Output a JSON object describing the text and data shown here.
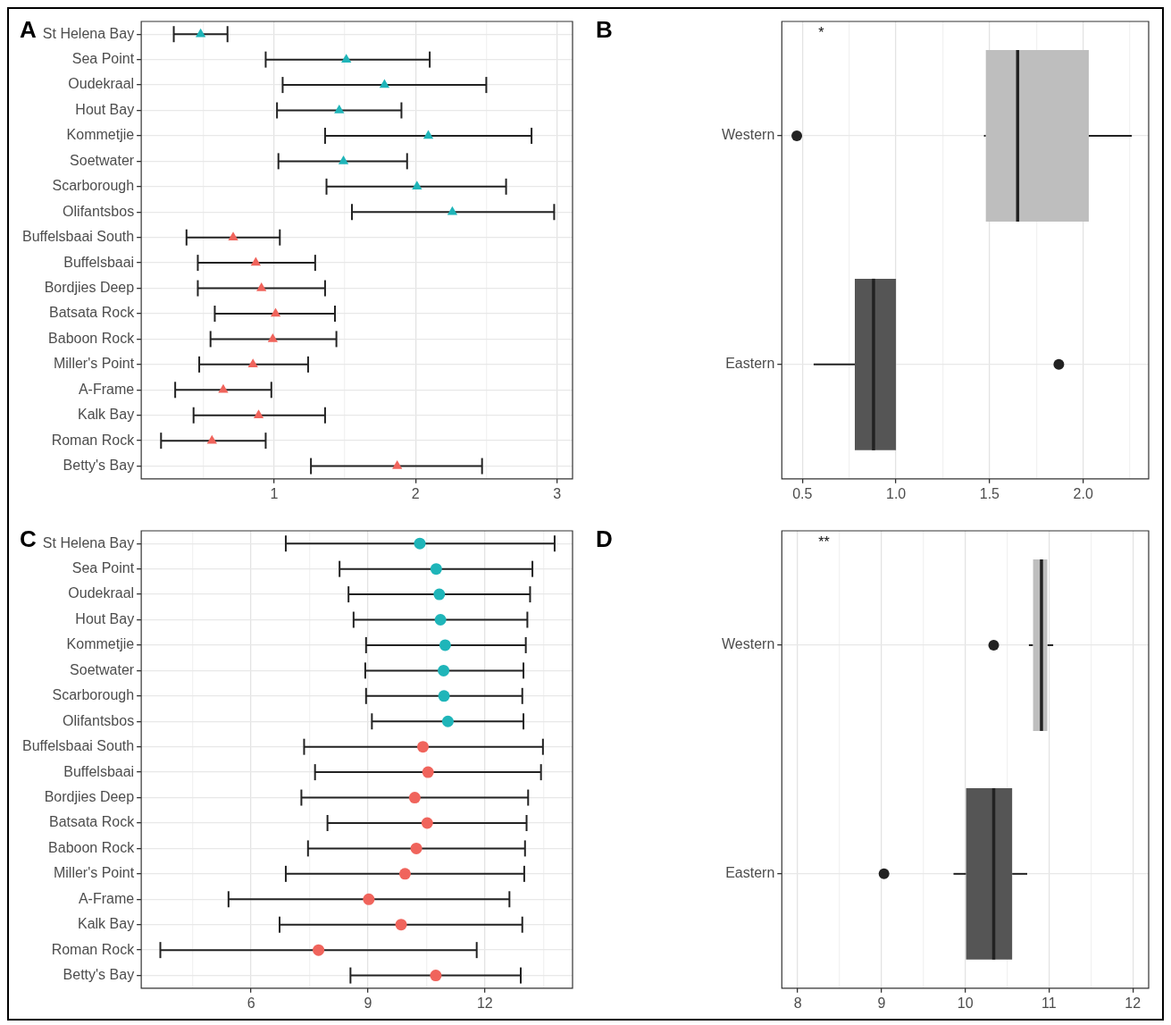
{
  "chart_data": [
    {
      "type": "scatter",
      "title": "A",
      "orientation": "horizontal",
      "marker": "triangle",
      "grid": true,
      "categories": [
        "St Helena Bay",
        "Sea Point",
        "Oudekraal",
        "Hout Bay",
        "Kommetjie",
        "Soetwater",
        "Scarborough",
        "Olifantsbos",
        "Buffelsbaai South",
        "Buffelsbaai",
        "Bordjies Deep",
        "Batsata Rock",
        "Baboon Rock",
        "Miller's Point",
        "A-Frame",
        "Kalk Bay",
        "Roman Rock",
        "Betty's Bay"
      ],
      "series": [
        {
          "color": "#1fb5b9",
          "values": [
            0.48,
            1.51,
            1.78,
            1.46,
            2.09,
            1.49,
            2.01,
            2.26,
            null,
            null,
            null,
            null,
            null,
            null,
            null,
            null,
            null,
            null
          ],
          "errors": [
            [
              0.29,
              0.67
            ],
            [
              0.94,
              2.1
            ],
            [
              1.06,
              2.5
            ],
            [
              1.02,
              1.9
            ],
            [
              1.36,
              2.82
            ],
            [
              1.03,
              1.94
            ],
            [
              1.37,
              2.64
            ],
            [
              1.55,
              2.98
            ],
            null,
            null,
            null,
            null,
            null,
            null,
            null,
            null,
            null,
            null
          ]
        },
        {
          "color": "#f0645c",
          "values": [
            null,
            null,
            null,
            null,
            null,
            null,
            null,
            null,
            0.71,
            0.87,
            0.91,
            1.01,
            0.99,
            0.85,
            0.64,
            0.89,
            0.56,
            1.87
          ],
          "errors": [
            null,
            null,
            null,
            null,
            null,
            null,
            null,
            null,
            [
              0.38,
              1.04
            ],
            [
              0.46,
              1.29
            ],
            [
              0.46,
              1.36
            ],
            [
              0.58,
              1.43
            ],
            [
              0.55,
              1.44
            ],
            [
              0.47,
              1.24
            ],
            [
              0.3,
              0.98
            ],
            [
              0.43,
              1.36
            ],
            [
              0.2,
              0.94
            ],
            [
              1.26,
              2.47
            ]
          ]
        }
      ],
      "xlim": [
        0.06,
        3.11
      ],
      "xticks": [
        {
          "value": 0.5,
          "label": null
        },
        1,
        {
          "value": 1.5,
          "label": null
        },
        2,
        {
          "value": 2.5,
          "label": null
        },
        3
      ]
    },
    {
      "type": "box",
      "title": "B",
      "orientation": "horizontal",
      "grid": true,
      "annotations": [
        "*"
      ],
      "categories": [
        "Western",
        "Eastern"
      ],
      "colors": [
        "#bebebe",
        "#555555"
      ],
      "boxes": [
        {
          "low": 1.47,
          "q1": 1.48,
          "median": 1.65,
          "q3": 2.03,
          "high": 2.26,
          "outliers": [
            0.47
          ]
        },
        {
          "low": 0.56,
          "q1": 0.78,
          "median": 0.88,
          "q3": 1.0,
          "high": 1.0,
          "outliers": [
            1.87
          ]
        }
      ],
      "xlim": [
        0.39,
        2.35
      ],
      "xticks": [
        0.5,
        {
          "value": 0.75,
          "label": null
        },
        {
          "value": 1,
          "label": "1.0"
        },
        {
          "value": 1.25,
          "label": null
        },
        1.5,
        {
          "value": 1.75,
          "label": null
        },
        {
          "value": 2,
          "label": "2.0"
        },
        {
          "value": 2.25,
          "label": null
        }
      ]
    },
    {
      "type": "scatter",
      "title": "C",
      "orientation": "horizontal",
      "marker": "circle",
      "grid": true,
      "categories": [
        "St Helena Bay",
        "Sea Point",
        "Oudekraal",
        "Hout Bay",
        "Kommetjie",
        "Soetwater",
        "Scarborough",
        "Olifantsbos",
        "Buffelsbaai South",
        "Buffelsbaai",
        "Bordjies Deep",
        "Batsata Rock",
        "Baboon Rock",
        "Miller's Point",
        "A-Frame",
        "Kalk Bay",
        "Roman Rock",
        "Betty's Bay"
      ],
      "series": [
        {
          "color": "#1fb5b9",
          "values": [
            10.33,
            10.75,
            10.83,
            10.86,
            10.98,
            10.94,
            10.95,
            11.05,
            null,
            null,
            null,
            null,
            null,
            null,
            null,
            null,
            null,
            null
          ],
          "errors": [
            [
              6.89,
              13.79
            ],
            [
              8.27,
              13.22
            ],
            [
              8.5,
              13.16
            ],
            [
              8.63,
              13.09
            ],
            [
              8.95,
              13.05
            ],
            [
              8.93,
              12.99
            ],
            [
              8.95,
              12.96
            ],
            [
              9.1,
              12.99
            ],
            null,
            null,
            null,
            null,
            null,
            null,
            null,
            null,
            null,
            null
          ]
        },
        {
          "color": "#f0645c",
          "values": [
            null,
            null,
            null,
            null,
            null,
            null,
            null,
            null,
            10.41,
            10.54,
            10.2,
            10.52,
            10.24,
            9.95,
            9.02,
            9.85,
            7.73,
            10.74
          ],
          "errors": [
            null,
            null,
            null,
            null,
            null,
            null,
            null,
            null,
            [
              7.36,
              13.49
            ],
            [
              7.64,
              13.44
            ],
            [
              7.29,
              13.11
            ],
            [
              7.96,
              13.07
            ],
            [
              7.46,
              13.03
            ],
            [
              6.89,
              13.01
            ],
            [
              5.42,
              12.63
            ],
            [
              6.73,
              12.96
            ],
            [
              3.67,
              11.79
            ],
            [
              8.55,
              12.92
            ]
          ]
        }
      ],
      "xlim": [
        3.18,
        14.25
      ],
      "xticks": [
        {
          "value": 4.5,
          "label": null
        },
        6,
        {
          "value": 7.5,
          "label": null
        },
        9,
        {
          "value": 10.5,
          "label": null
        },
        12,
        {
          "value": 13.5,
          "label": null
        }
      ]
    },
    {
      "type": "box",
      "title": "D",
      "orientation": "horizontal",
      "grid": true,
      "annotations": [
        "**"
      ],
      "categories": [
        "Western",
        "Eastern"
      ],
      "colors": [
        "#bebebe",
        "#555555"
      ],
      "boxes": [
        {
          "low": 10.76,
          "q1": 10.81,
          "median": 10.91,
          "q3": 10.98,
          "high": 11.05,
          "outliers": [
            10.34
          ]
        },
        {
          "low": 9.86,
          "q1": 10.01,
          "median": 10.34,
          "q3": 10.56,
          "high": 10.74,
          "outliers": [
            9.03
          ]
        }
      ],
      "xlim": [
        7.81,
        12.19
      ],
      "xticks": [
        8,
        {
          "value": 8.5,
          "label": null
        },
        9,
        {
          "value": 9.5,
          "label": null
        },
        10,
        {
          "value": 10.5,
          "label": null
        },
        11,
        {
          "value": 11.5,
          "label": null
        },
        12
      ]
    }
  ]
}
